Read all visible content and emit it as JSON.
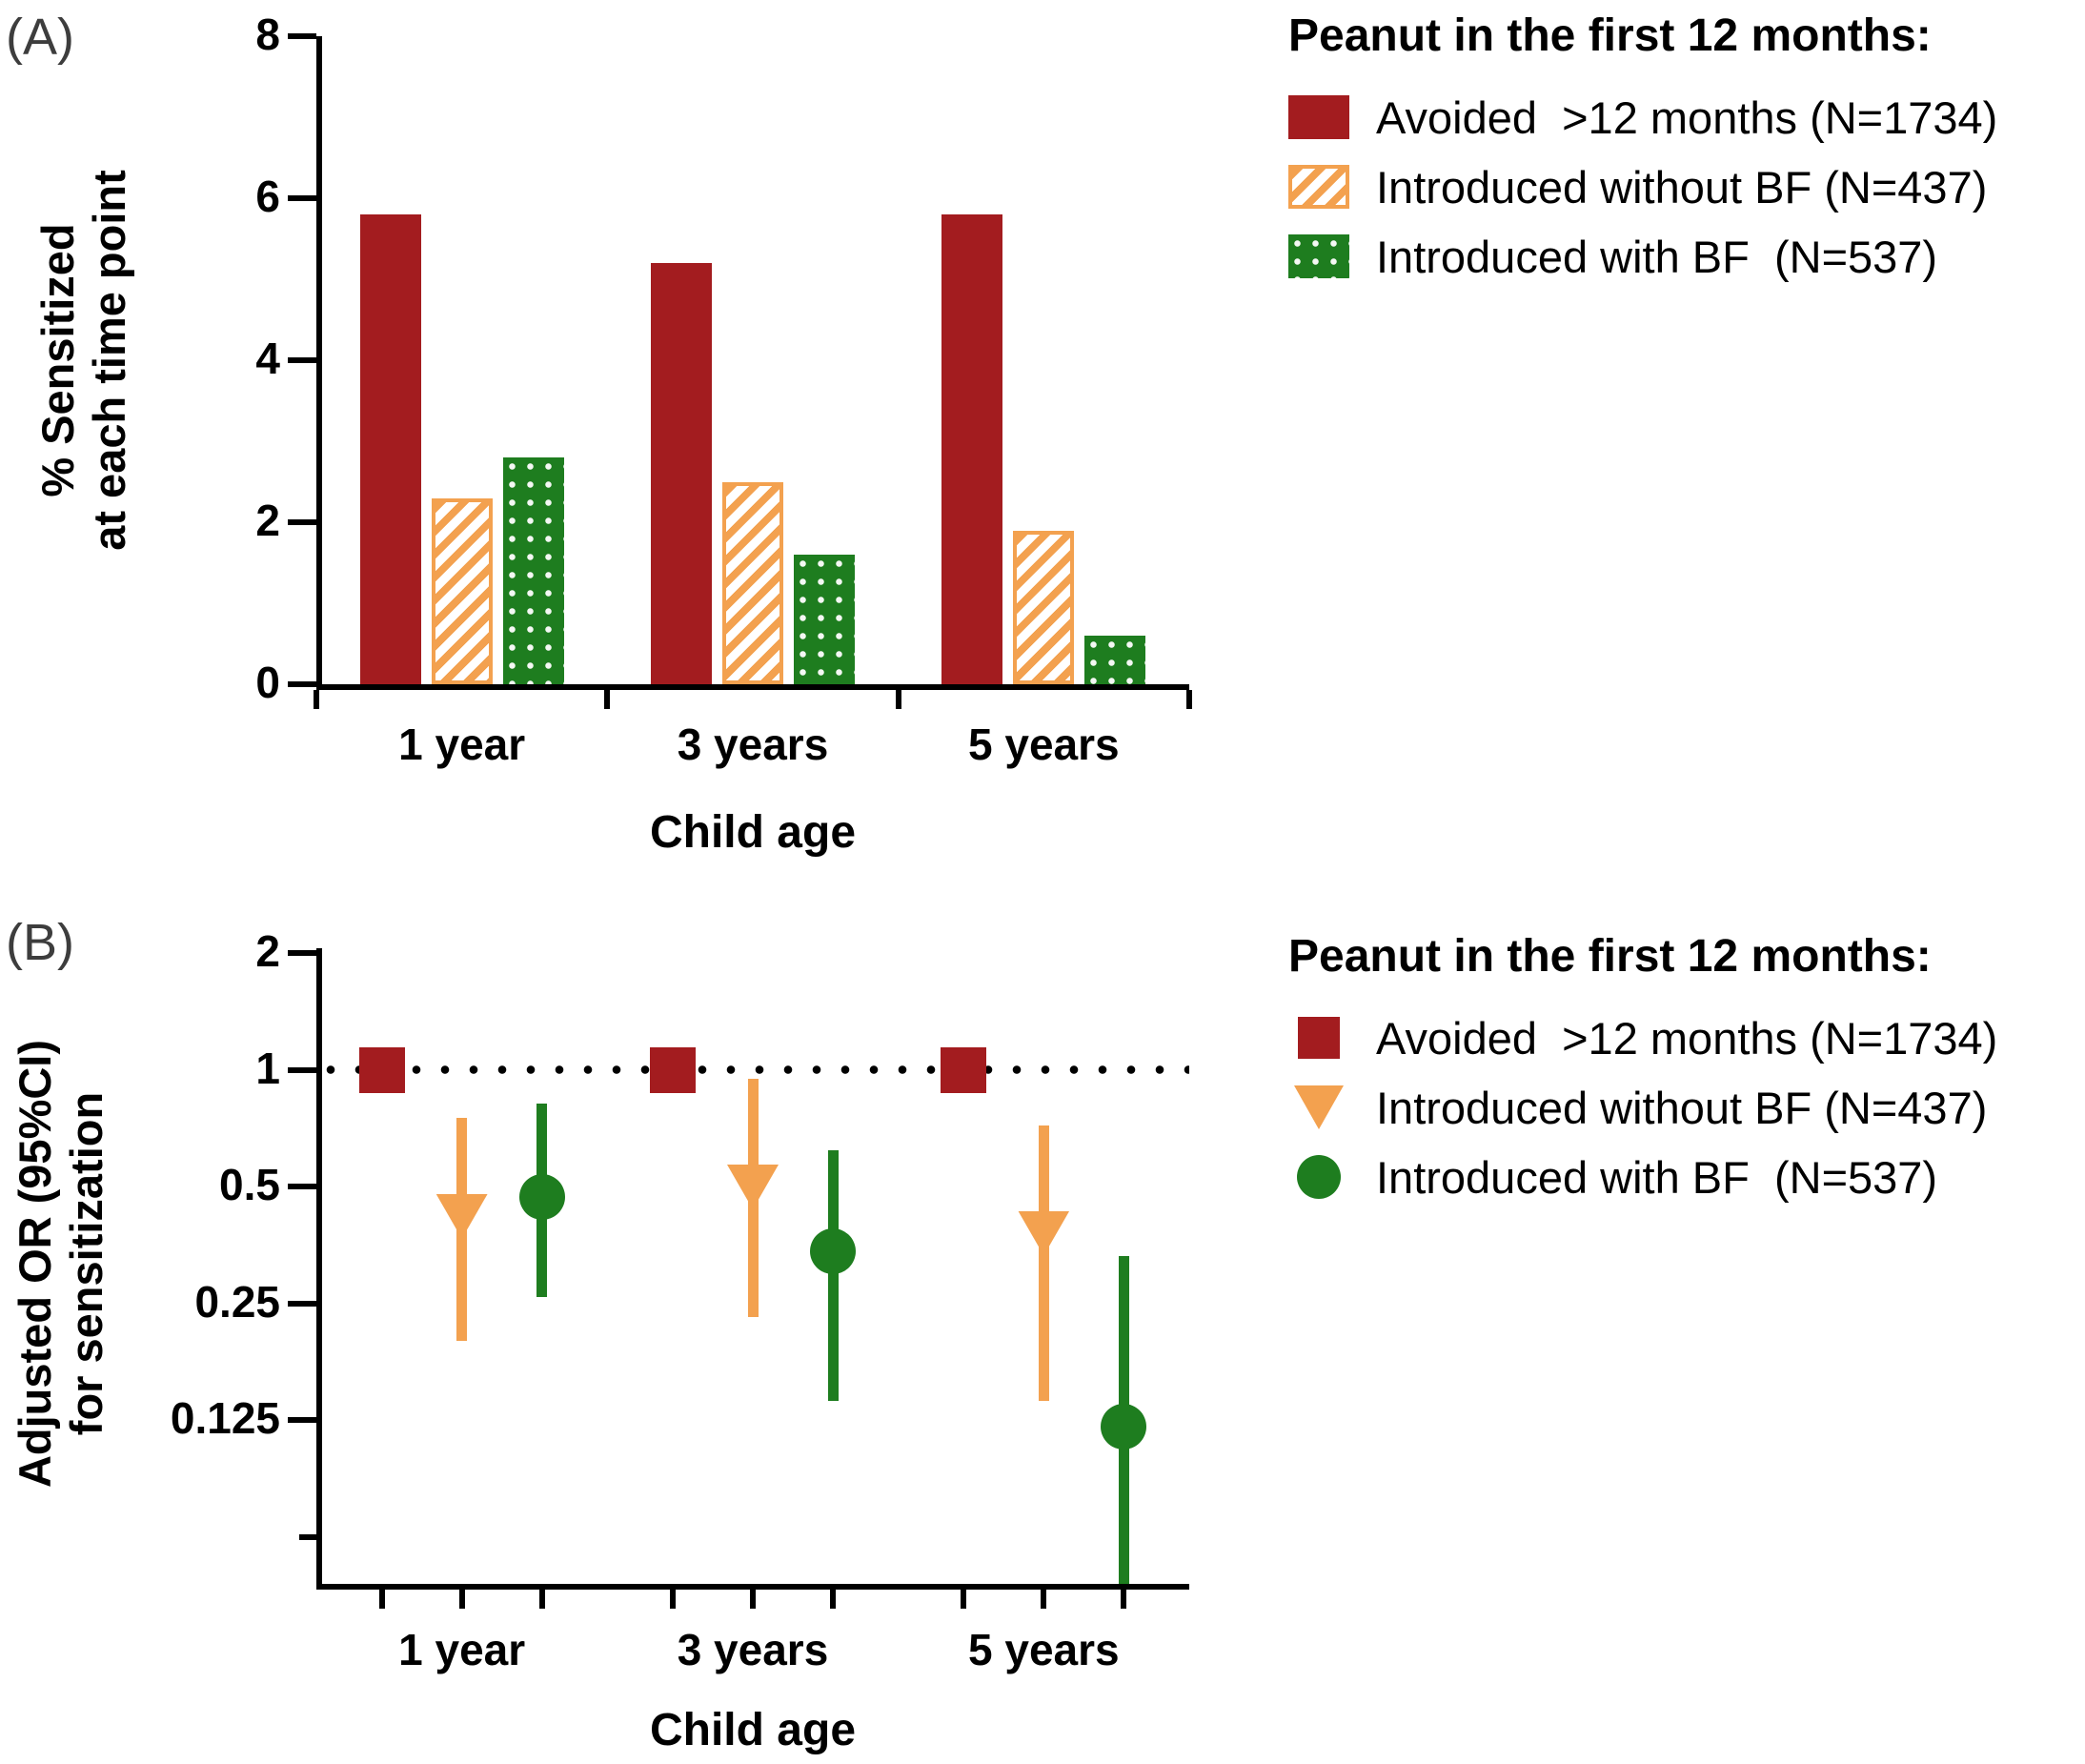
{
  "figure": {
    "background": "#ffffff"
  },
  "colors": {
    "avoided": "#a31c1f",
    "without_bf": "#f3a14f",
    "with_bf": "#1e7d1f",
    "axis": "#000000"
  },
  "legend": {
    "title": "Peanut in the first 12 months:",
    "entries": [
      {
        "key": "avoided",
        "label": "Avoided  >12 months (N=1734)",
        "marker": "square",
        "pattern": "solid"
      },
      {
        "key": "without_bf",
        "label": "Introduced without BF (N=437)",
        "marker": "triangle-down",
        "pattern": "stripes"
      },
      {
        "key": "with_bf",
        "label": "Introduced with BF  (N=537)",
        "marker": "circle",
        "pattern": "dots"
      }
    ]
  },
  "panel_a": {
    "label": "(A)",
    "ylabel_line1": "% Sensitized",
    "ylabel_line2": "at each time point",
    "xlabel": "Child age"
  },
  "panel_b": {
    "label": "(B)",
    "ylabel_line1": "Adjusted OR (95%CI)",
    "ylabel_line2": "for sensitization",
    "xlabel": "Child age"
  },
  "chart_data": [
    {
      "type": "bar",
      "panel": "A",
      "title": "",
      "categories": [
        "1 year",
        "3 years",
        "5 years"
      ],
      "series": [
        {
          "name": "Avoided  >12 months (N=1734)",
          "key": "avoided",
          "values": [
            5.8,
            5.2,
            5.8
          ]
        },
        {
          "name": "Introduced without BF (N=437)",
          "key": "without_bf",
          "values": [
            2.3,
            2.5,
            1.9
          ]
        },
        {
          "name": "Introduced with BF  (N=537)",
          "key": "with_bf",
          "values": [
            2.8,
            1.6,
            0.6
          ]
        }
      ],
      "xlabel": "Child age",
      "ylabel": "% Sensitized at each time point",
      "ylim": [
        0,
        8
      ],
      "yticks": [
        0,
        2,
        4,
        6,
        8
      ],
      "grid": false,
      "legend_position": "outside-top-right"
    },
    {
      "type": "scatter",
      "panel": "B",
      "title": "",
      "categories": [
        "1 year",
        "3 years",
        "5 years"
      ],
      "yscale": "log2",
      "ylim": [
        0.047,
        2.1
      ],
      "yticks": [
        2,
        1,
        0.5,
        0.25,
        0.125
      ],
      "reference_line": {
        "y": 1,
        "style": "dotted"
      },
      "series": [
        {
          "name": "Avoided  >12 months (N=1734)",
          "key": "avoided",
          "marker": "square",
          "or": [
            1,
            1,
            1
          ],
          "ci_low": [
            null,
            null,
            null
          ],
          "ci_high": [
            null,
            null,
            null
          ]
        },
        {
          "name": "Introduced without BF (N=437)",
          "key": "without_bf",
          "marker": "triangle-down",
          "or": [
            0.42,
            0.5,
            0.38
          ],
          "ci_low": [
            0.2,
            0.23,
            0.14
          ],
          "ci_high": [
            0.75,
            0.95,
            0.72
          ]
        },
        {
          "name": "Introduced with BF  (N=537)",
          "key": "with_bf",
          "marker": "circle",
          "or": [
            0.47,
            0.34,
            0.12
          ],
          "ci_low": [
            0.26,
            0.14,
            0.04
          ],
          "ci_high": [
            0.82,
            0.62,
            0.33
          ]
        }
      ],
      "xlabel": "Child age",
      "ylabel": "Adjusted OR (95%CI) for sensitization",
      "grid": false,
      "legend_position": "outside-top-right"
    }
  ]
}
